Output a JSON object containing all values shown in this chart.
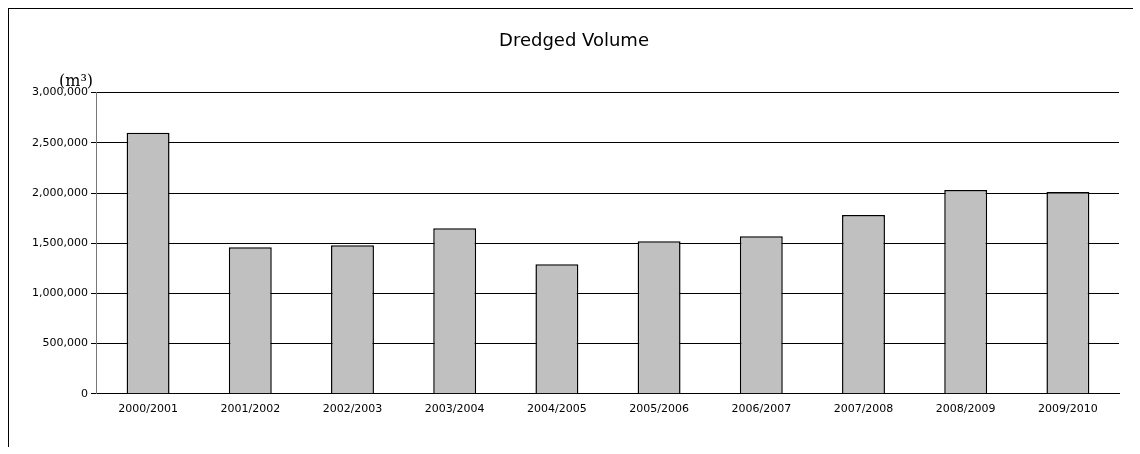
{
  "chart_data": {
    "type": "bar",
    "title": "Dredged Volume",
    "ylabel": "(m³)",
    "categories": [
      "2000/2001",
      "2001/2002",
      "2002/2003",
      "2003/2004",
      "2004/2005",
      "2005/2006",
      "2006/2007",
      "2007/2008",
      "2008/2009",
      "2009/2010"
    ],
    "values": [
      2600000,
      1460000,
      1480000,
      1650000,
      1290000,
      1520000,
      1570000,
      1780000,
      2030000,
      2010000
    ],
    "color": "#c0c0c0",
    "ylim": [
      0,
      3000000
    ],
    "yticks": [
      0,
      {
        "value": 500000,
        "label": "500,000"
      },
      {
        "value": 1000000,
        "label": "1,000,000"
      },
      {
        "value": 1500000,
        "label": "1,500,000"
      },
      {
        "value": 2000000,
        "label": "2,000,000"
      },
      {
        "value": 2500000,
        "label": "2,500,000"
      },
      {
        "value": 3000000,
        "label": "3,000,000"
      }
    ],
    "grid": "y",
    "legend": false
  }
}
